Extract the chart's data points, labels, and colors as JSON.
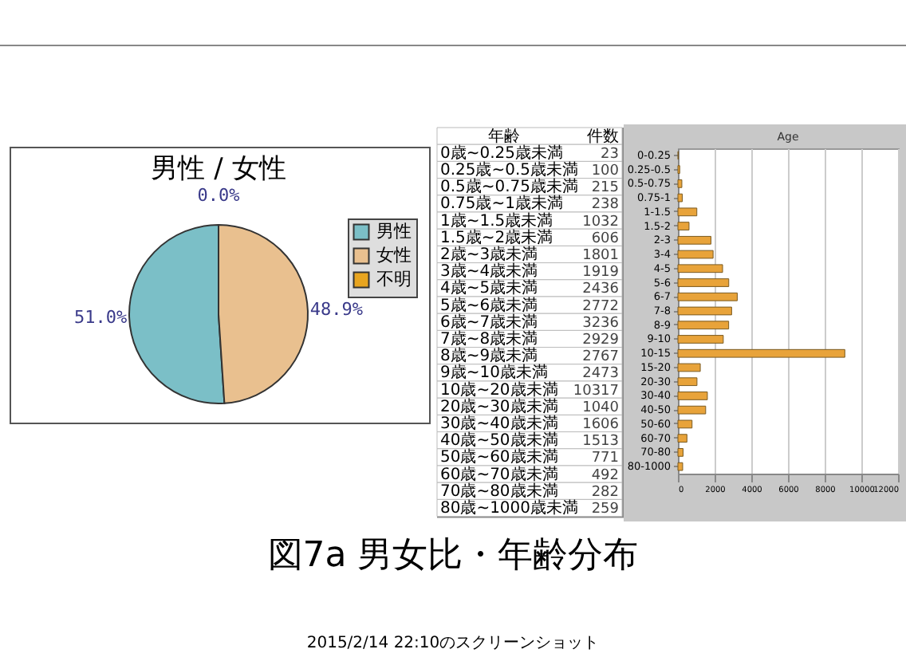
{
  "chart_data": [
    {
      "type": "pie",
      "title": "男性 / 女性",
      "categories": [
        "男性",
        "女性",
        "不明"
      ],
      "values": [
        51.0,
        48.9,
        0.0
      ],
      "colors": [
        "#7bbfc7",
        "#e9c08f",
        "#e8a520"
      ],
      "value_labels": [
        "51.0%",
        "48.9%",
        "0.0%"
      ],
      "legend": "top right",
      "annotations": [
        "図7a 男女比・年齢分布",
        "2015/2/14 22:10のスクリーンショット"
      ]
    },
    {
      "type": "other",
      "xlabel": "年齢",
      "ylabel": "件数",
      "data_labels": true,
      "categories": [
        "0歳~0.25歳未満",
        "0.25歳~0.5歳未満",
        "0.5歳~0.75歳未満",
        "0.75歳~1歳未満",
        "1歳~1.5歳未満",
        "1.5歳~2歳未満",
        "2歳~3歳未満",
        "3歳~4歳未満",
        "4歳~5歳未満",
        "5歳~6歳未満",
        "6歳~7歳未満",
        "7歳~8歳未満",
        "8歳~9歳未満",
        "9歳~10歳未満",
        "10歳~20歳未満",
        "20歳~30歳未満",
        "30歳~40歳未満",
        "40歳~50歳未満",
        "50歳~60歳未満",
        "60歳~70歳未満",
        "70歳~80歳未満",
        "80歳~1000歳未満"
      ],
      "values": [
        23,
        100,
        215,
        238,
        1032,
        606,
        1801,
        1919,
        2436,
        2772,
        3236,
        2929,
        2767,
        2473,
        10317,
        1040,
        1606,
        1513,
        771,
        492,
        282,
        259
      ]
    },
    {
      "type": "bar",
      "orientation": "horizontal",
      "title": "Age",
      "grid": "x",
      "color": "#e8a33a",
      "categories": [
        "0-0.25",
        "0.25-0.5",
        "0.5-0.75",
        "0.75-1",
        "1-1.5",
        "1.5-2",
        "2-3",
        "3-4",
        "4-5",
        "5-6",
        "6-7",
        "7-8",
        "8-9",
        "9-10",
        "10-15",
        "15-20",
        "20-30",
        "30-40",
        "40-50",
        "50-60",
        "60-70",
        "70-80",
        "80-1000"
      ],
      "values": [
        23,
        100,
        215,
        238,
        1032,
        606,
        1801,
        1919,
        2436,
        2772,
        3236,
        2929,
        2767,
        2473,
        9100,
        1220,
        1040,
        1606,
        1513,
        771,
        492,
        282,
        259
      ],
      "xlim": [
        0,
        12000
      ],
      "xticks": [
        0,
        2000,
        4000,
        6000,
        8000,
        10000,
        12000
      ]
    }
  ]
}
